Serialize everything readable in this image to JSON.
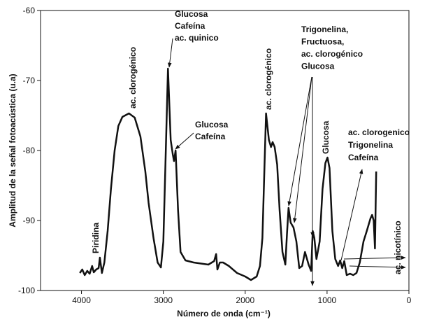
{
  "chart_data": {
    "type": "line",
    "x_label": "Número de onda (cm⁻¹)",
    "y_label": "Amplitud de la señal fotoacústica (u.a)",
    "xlim": [
      4500,
      0
    ],
    "ylim": [
      -100,
      -60
    ],
    "xticks": [
      4000,
      3000,
      2000,
      1000,
      0
    ],
    "yticks": [
      -100,
      -90,
      -80,
      -70,
      -60
    ],
    "color": "#111111",
    "annotations": [
      {
        "lines": [
          "Piridina"
        ]
      },
      {
        "lines": [
          "ac. clorogénico"
        ]
      },
      {
        "lines": [
          "Glucosa",
          "Cafeína",
          "ac. quinico"
        ]
      },
      {
        "lines": [
          "Glucosa",
          "Cafeína"
        ]
      },
      {
        "lines": [
          "ac. clorogénico"
        ]
      },
      {
        "lines": [
          "Trigonelina,",
          "Fructuosa,",
          "ac. clorogénico",
          "Glucosa"
        ]
      },
      {
        "lines": [
          "Glucosa"
        ]
      },
      {
        "lines": [
          "ac. clorogenico",
          "Trigonelina",
          "Cafeína"
        ]
      },
      {
        "lines": [
          "ac. nicotínico"
        ]
      }
    ],
    "x": [
      4020,
      3990,
      3960,
      3930,
      3900,
      3870,
      3850,
      3820,
      3790,
      3775,
      3750,
      3720,
      3680,
      3640,
      3595,
      3550,
      3500,
      3420,
      3350,
      3280,
      3220,
      3180,
      3120,
      3070,
      3030,
      3000,
      2970,
      2943,
      2910,
      2885,
      2870,
      2850,
      2820,
      2790,
      2730,
      2630,
      2450,
      2380,
      2355,
      2340,
      2310,
      2270,
      2200,
      2100,
      2000,
      1930,
      1860,
      1820,
      1790,
      1765,
      1745,
      1710,
      1685,
      1665,
      1640,
      1610,
      1580,
      1545,
      1510,
      1490,
      1470,
      1445,
      1410,
      1375,
      1340,
      1305,
      1270,
      1225,
      1195,
      1175,
      1155,
      1130,
      1090,
      1055,
      1020,
      995,
      970,
      935,
      900,
      865,
      840,
      815,
      790,
      760,
      720,
      680,
      640,
      600,
      555,
      515,
      470,
      450,
      430,
      415,
      400
    ],
    "values": [
      -97.5,
      -97,
      -97.8,
      -97.2,
      -97.6,
      -96.5,
      -97.4,
      -97,
      -96.8,
      -95.3,
      -97.5,
      -96,
      -91.5,
      -85.5,
      -80,
      -76.5,
      -75.2,
      -74.7,
      -75.3,
      -78,
      -83,
      -87.5,
      -92.5,
      -96,
      -96.7,
      -93,
      -80,
      -68.3,
      -78.5,
      -80.5,
      -81.5,
      -80,
      -88.5,
      -94.5,
      -95.7,
      -96,
      -96.3,
      -95.8,
      -94.8,
      -97,
      -96,
      -96,
      -96.5,
      -97.5,
      -98,
      -98.5,
      -98,
      -96.5,
      -92.5,
      -82.5,
      -74.7,
      -78.5,
      -79.5,
      -78.8,
      -79.5,
      -82,
      -88.5,
      -94.5,
      -96.3,
      -92,
      -88.2,
      -90.3,
      -91,
      -93,
      -96.8,
      -96.5,
      -94.5,
      -96.3,
      -97.2,
      -91.5,
      -92.5,
      -95.5,
      -93,
      -85.5,
      -81.8,
      -81,
      -82.5,
      -91.5,
      -95.5,
      -96.5,
      -95.7,
      -96.8,
      -95.8,
      -97.8,
      -97.6,
      -97.8,
      -97.5,
      -96,
      -93,
      -91.5,
      -89.7,
      -89.2,
      -90,
      -94,
      -83
    ]
  }
}
